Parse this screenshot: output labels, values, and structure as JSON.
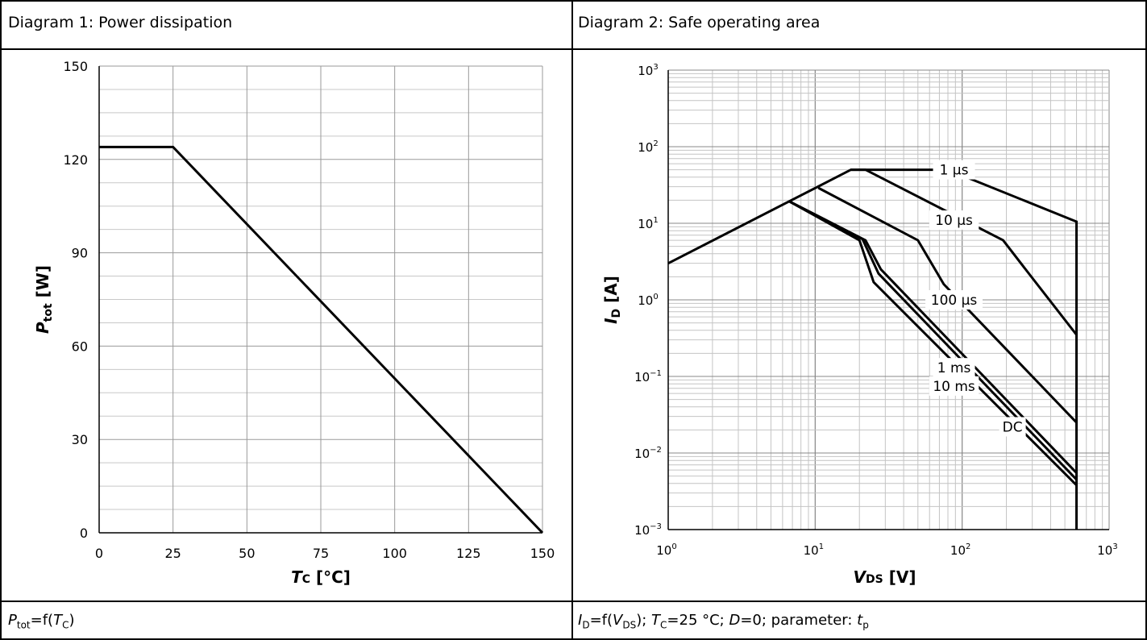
{
  "headers": {
    "left": "Diagram 1: Power dissipation",
    "right": "Diagram 2: Safe operating area"
  },
  "captions": {
    "left": {
      "sym": "P",
      "sub": "tot",
      "mid": "=f(",
      "sym2": "T",
      "sub2": "C",
      "end": ")"
    },
    "right": {
      "sym": "I",
      "sub": "D",
      "mid": "=f(",
      "sym2": "V",
      "sub2": "DS",
      "rest1": "); ",
      "sym3": "T",
      "sub3": "C",
      "rest2": "=25 °C; ",
      "sym4": "D",
      "rest3": "=0; parameter: ",
      "sym5": "t",
      "sub5": "p"
    }
  },
  "chart_data": [
    {
      "type": "line",
      "xlabel": {
        "sym": "T",
        "sub": "C",
        "unit": " [°C]"
      },
      "ylabel": {
        "sym": "P",
        "sub": "tot",
        "unit": " [W]"
      },
      "xlim": [
        0,
        150
      ],
      "ylim": [
        0,
        150
      ],
      "xticks": [
        "0",
        "25",
        "50",
        "75",
        "100",
        "125",
        "150"
      ],
      "yticks": [
        "0",
        "30",
        "60",
        "90",
        "120",
        "150"
      ],
      "grid": true,
      "series": [
        {
          "x": [
            0,
            25,
            150
          ],
          "y": [
            124,
            124,
            0
          ]
        }
      ]
    },
    {
      "type": "line",
      "xscale": "log",
      "yscale": "log",
      "xlabel": {
        "sym": "V",
        "sub": "DS",
        "unit": " [V]"
      },
      "ylabel": {
        "sym": "I",
        "sub": "D",
        "unit": " [A]"
      },
      "xlim": [
        1,
        1000
      ],
      "ylim": [
        0.001,
        1000
      ],
      "xticks": [
        "10^0",
        "10^1",
        "10^2",
        "10^3"
      ],
      "yticks": [
        "10^-3",
        "10^-2",
        "10^-1",
        "10^0",
        "10^1",
        "10^2",
        "10^3"
      ],
      "grid": true,
      "series": [
        {
          "name": "1 µs",
          "x": [
            1,
            17.5,
            80,
            600,
            600
          ],
          "y": [
            3,
            50,
            50,
            10.5,
            0.001
          ]
        },
        {
          "name": "10 µs",
          "x": [
            17.5,
            22,
            190,
            290,
            600
          ],
          "y": [
            50,
            50,
            6,
            2.1,
            0.35
          ]
        },
        {
          "name": "100 µs",
          "x": [
            10.5,
            50,
            75,
            600
          ],
          "y": [
            29,
            6,
            1.6,
            0.025
          ]
        },
        {
          "name": "1 ms",
          "x": [
            6.6,
            22,
            28,
            600
          ],
          "y": [
            19.5,
            6,
            2.5,
            0.0055
          ]
        },
        {
          "name": "10 ms",
          "x": [
            6.6,
            21,
            27,
            600
          ],
          "y": [
            19.5,
            6.2,
            2.2,
            0.0045
          ]
        },
        {
          "name": "DC",
          "x": [
            6.6,
            20,
            25,
            600
          ],
          "y": [
            19.5,
            6,
            1.7,
            0.0038
          ]
        }
      ],
      "annotations": [
        {
          "text": "1 µs",
          "x": 88,
          "y": 50
        },
        {
          "text": "10 µs",
          "x": 88,
          "y": 11
        },
        {
          "text": "100 µs",
          "x": 88,
          "y": 1.0
        },
        {
          "text": "1 ms",
          "x": 88,
          "y": 0.13
        },
        {
          "text": "10 ms",
          "x": 88,
          "y": 0.075
        },
        {
          "text": "DC",
          "x": 220,
          "y": 0.022
        }
      ]
    }
  ]
}
